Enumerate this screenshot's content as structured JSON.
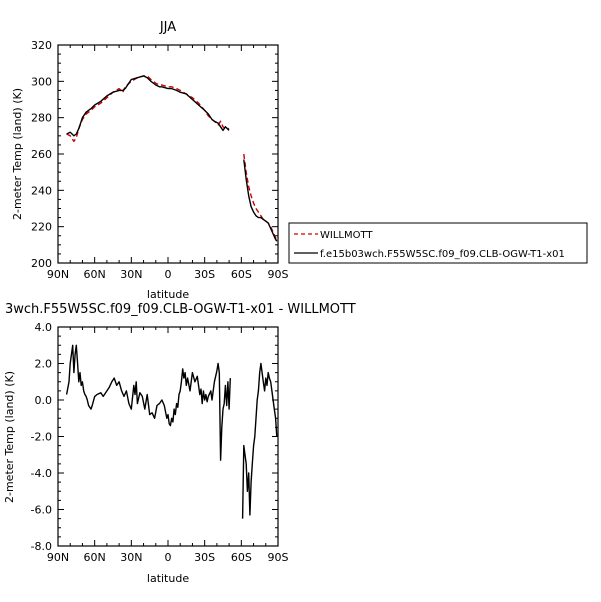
{
  "chart_data": [
    {
      "type": "line",
      "title": "JJA",
      "xlabel": "latitude",
      "ylabel": "2-meter Temp (land) (K)",
      "xlim": [
        90,
        -90
      ],
      "ylim": [
        200,
        320
      ],
      "x_tick_labels": [
        "90N",
        "60N",
        "30N",
        "0",
        "30S",
        "60S",
        "90S"
      ],
      "y_tick_labels": [
        "200",
        "220",
        "240",
        "260",
        "280",
        "300",
        "320"
      ],
      "legend_position": "right",
      "series": [
        {
          "name": "WILLMOTT",
          "color": "#cc0000",
          "dash": "dashed",
          "segments": [
            [
              [
                83,
                271
              ],
              [
                80,
                270
              ],
              [
                77,
                267
              ],
              [
                75,
                269
              ],
              [
                73,
                274
              ],
              [
                70,
                279
              ],
              [
                67,
                282
              ],
              [
                63,
                284
              ],
              [
                60,
                286
              ],
              [
                55,
                288
              ],
              [
                50,
                291
              ],
              [
                45,
                294
              ],
              [
                40,
                296
              ],
              [
                37,
                294
              ],
              [
                35,
                297
              ],
              [
                30,
                300
              ],
              [
                25,
                302
              ],
              [
                20,
                303
              ],
              [
                17,
                303
              ],
              [
                14,
                301
              ],
              [
                10,
                299
              ],
              [
                7,
                298
              ],
              [
                5,
                298
              ],
              [
                0,
                297
              ],
              [
                -3,
                297
              ],
              [
                -7,
                296
              ],
              [
                -10,
                295
              ],
              [
                -15,
                293
              ],
              [
                -20,
                291
              ],
              [
                -25,
                288
              ],
              [
                -30,
                284
              ],
              [
                -33,
                281
              ],
              [
                -36,
                279
              ],
              [
                -38,
                278
              ],
              [
                -41,
                276
              ],
              [
                -43,
                278
              ],
              [
                -45,
                275
              ],
              [
                -47,
                274
              ],
              [
                -50,
                274
              ]
            ],
            [
              [
                -62,
                260
              ],
              [
                -64,
                250
              ],
              [
                -66,
                242
              ],
              [
                -68,
                237
              ],
              [
                -70,
                233
              ],
              [
                -72,
                230
              ],
              [
                -74,
                228
              ],
              [
                -76,
                226
              ],
              [
                -78,
                224
              ],
              [
                -80,
                223
              ],
              [
                -82,
                222
              ],
              [
                -84,
                220
              ],
              [
                -86,
                217
              ],
              [
                -88,
                214
              ],
              [
                -89,
                212
              ]
            ]
          ]
        },
        {
          "name": "f.e15b03wch.F55W5SC.f09_f09.CLB-OGW-T1-x01",
          "color": "#000000",
          "dash": "solid",
          "segments": [
            [
              [
                83,
                271
              ],
              [
                80,
                272
              ],
              [
                77,
                270
              ],
              [
                75,
                271
              ],
              [
                73,
                274
              ],
              [
                70,
                280
              ],
              [
                67,
                283
              ],
              [
                63,
                285
              ],
              [
                60,
                287
              ],
              [
                55,
                289
              ],
              [
                50,
                292
              ],
              [
                45,
                294
              ],
              [
                40,
                295
              ],
              [
                37,
                295
              ],
              [
                35,
                296
              ],
              [
                30,
                301
              ],
              [
                25,
                302
              ],
              [
                20,
                303
              ],
              [
                17,
                302
              ],
              [
                14,
                300
              ],
              [
                10,
                298
              ],
              [
                7,
                297
              ],
              [
                5,
                297
              ],
              [
                0,
                296
              ],
              [
                -3,
                296
              ],
              [
                -7,
                295
              ],
              [
                -10,
                294
              ],
              [
                -15,
                293
              ],
              [
                -20,
                290
              ],
              [
                -25,
                287
              ],
              [
                -30,
                284
              ],
              [
                -33,
                282
              ],
              [
                -36,
                279
              ],
              [
                -38,
                278
              ],
              [
                -41,
                277
              ],
              [
                -43,
                275
              ],
              [
                -45,
                273
              ],
              [
                -47,
                275
              ],
              [
                -50,
                273
              ]
            ],
            [
              [
                -62,
                257
              ],
              [
                -64,
                246
              ],
              [
                -66,
                237
              ],
              [
                -68,
                231
              ],
              [
                -70,
                228
              ],
              [
                -72,
                226
              ],
              [
                -74,
                225
              ],
              [
                -76,
                225
              ],
              [
                -78,
                224
              ],
              [
                -80,
                223
              ],
              [
                -82,
                222
              ],
              [
                -84,
                219
              ],
              [
                -86,
                216
              ],
              [
                -88,
                213
              ],
              [
                -89,
                212
              ]
            ]
          ]
        }
      ]
    },
    {
      "type": "line",
      "title": "3wch.F55W5SC.f09_f09.CLB-OGW-T1-x01 - WILLMOTT",
      "xlabel": "latitude",
      "ylabel": "2-meter Temp (land) (K)",
      "xlim": [
        90,
        -90
      ],
      "ylim": [
        -8,
        4
      ],
      "x_tick_labels": [
        "90N",
        "60N",
        "30N",
        "0",
        "30S",
        "60S",
        "90S"
      ],
      "y_tick_labels": [
        "-8.0",
        "-6.0",
        "-4.0",
        "-2.0",
        "0.0",
        "2.0",
        "4.0"
      ],
      "series": [
        {
          "name": "",
          "color": "#000000",
          "dash": "solid",
          "segments": [
            [
              [
                83,
                0.3
              ],
              [
                81,
                1.0
              ],
              [
                80,
                2.0
              ],
              [
                78,
                3.0
              ],
              [
                77,
                1.5
              ],
              [
                76,
                2.5
              ],
              [
                75,
                3.0
              ],
              [
                74,
                2.0
              ],
              [
                73,
                1.0
              ],
              [
                72,
                1.5
              ],
              [
                71,
                0.8
              ],
              [
                70,
                1.0
              ],
              [
                69,
                0.5
              ],
              [
                68,
                0.3
              ],
              [
                67,
                0.2
              ],
              [
                66,
                0.0
              ],
              [
                65,
                -0.3
              ],
              [
                63,
                -0.5
              ],
              [
                62,
                -0.3
              ],
              [
                60,
                0.2
              ],
              [
                58,
                0.3
              ],
              [
                55,
                0.4
              ],
              [
                53,
                0.2
              ],
              [
                50,
                0.5
              ],
              [
                48,
                0.7
              ],
              [
                46,
                1.0
              ],
              [
                44,
                1.2
              ],
              [
                42,
                0.8
              ],
              [
                40,
                1.0
              ],
              [
                38,
                0.5
              ],
              [
                36,
                0.2
              ],
              [
                34,
                0.5
              ],
              [
                32,
                -0.2
              ],
              [
                30,
                -0.5
              ],
              [
                28,
                0.8
              ],
              [
                27,
                0.3
              ],
              [
                26,
                1.0
              ],
              [
                25,
                -0.2
              ],
              [
                23,
                0.4
              ],
              [
                21,
                0.2
              ],
              [
                19,
                -0.5
              ],
              [
                17,
                0.3
              ],
              [
                15,
                -0.8
              ],
              [
                13,
                -0.7
              ],
              [
                11,
                -1.0
              ],
              [
                9,
                -0.3
              ],
              [
                7,
                -0.2
              ],
              [
                5,
                0.0
              ],
              [
                3,
                -0.3
              ],
              [
                1,
                -1.0
              ],
              [
                0,
                -0.8
              ],
              [
                -1,
                -1.3
              ],
              [
                -2,
                -1.4
              ],
              [
                -3,
                -1.0
              ],
              [
                -4,
                -1.2
              ],
              [
                -5,
                -0.5
              ],
              [
                -6,
                -0.8
              ],
              [
                -7,
                -0.2
              ],
              [
                -8,
                -0.4
              ],
              [
                -9,
                0.3
              ],
              [
                -10,
                0.5
              ],
              [
                -11,
                1.0
              ],
              [
                -12,
                1.7
              ],
              [
                -13,
                1.2
              ],
              [
                -14,
                1.5
              ],
              [
                -15,
                0.8
              ],
              [
                -16,
                1.2
              ],
              [
                -18,
                0.5
              ],
              [
                -20,
                1.5
              ],
              [
                -22,
                1.0
              ],
              [
                -24,
                1.3
              ],
              [
                -26,
                0.3
              ],
              [
                -27,
                0.6
              ],
              [
                -28,
                -0.2
              ],
              [
                -29,
                0.5
              ],
              [
                -30,
                0.0
              ],
              [
                -31,
                0.3
              ],
              [
                -32,
                -0.1
              ],
              [
                -33,
                0.2
              ],
              [
                -35,
                0.5
              ],
              [
                -36,
                0.0
              ],
              [
                -38,
                1.0
              ],
              [
                -40,
                1.6
              ],
              [
                -41,
                2.0
              ],
              [
                -42,
                1.5
              ],
              [
                -43,
                -3.3
              ],
              [
                -44,
                -1.5
              ],
              [
                -45,
                -0.5
              ],
              [
                -46,
                -0.2
              ],
              [
                -47,
                0.8
              ],
              [
                -48,
                -0.3
              ],
              [
                -49,
                1.0
              ],
              [
                -50,
                -0.5
              ],
              [
                -51,
                1.2
              ]
            ],
            [
              [
                -61,
                -6.5
              ],
              [
                -62,
                -2.5
              ],
              [
                -63,
                -3.0
              ],
              [
                -64,
                -3.5
              ],
              [
                -65,
                -5.0
              ],
              [
                -66,
                -4.0
              ],
              [
                -67,
                -6.3
              ],
              [
                -68,
                -4.5
              ],
              [
                -69,
                -3.5
              ],
              [
                -70,
                -2.5
              ],
              [
                -71,
                -2.0
              ],
              [
                -72,
                -1.0
              ],
              [
                -73,
                0.0
              ],
              [
                -74,
                0.5
              ],
              [
                -75,
                1.5
              ],
              [
                -76,
                2.0
              ],
              [
                -77,
                1.5
              ],
              [
                -78,
                1.0
              ],
              [
                -79,
                0.5
              ],
              [
                -80,
                1.2
              ],
              [
                -81,
                0.8
              ],
              [
                -82,
                1.5
              ],
              [
                -83,
                1.2
              ],
              [
                -84,
                1.0
              ],
              [
                -85,
                0.5
              ],
              [
                -86,
                0.0
              ],
              [
                -87,
                -0.5
              ],
              [
                -88,
                -1.0
              ],
              [
                -89,
                -2.0
              ]
            ]
          ]
        }
      ]
    }
  ]
}
